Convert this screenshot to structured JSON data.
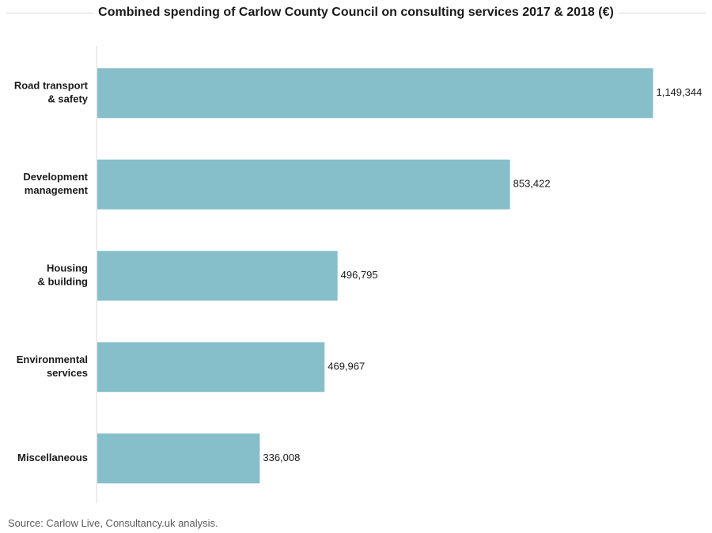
{
  "chart_data": {
    "type": "bar",
    "orientation": "horizontal",
    "title": "Combined spending of Carlow County Council on consulting services 2017 & 2018 (€)",
    "categories": [
      [
        "Road transport",
        "& safety"
      ],
      [
        "Development",
        "management"
      ],
      [
        "Housing",
        "& building"
      ],
      [
        "Environmental",
        "services"
      ],
      [
        "Miscellaneous"
      ]
    ],
    "values": [
      1149344,
      853422,
      496795,
      469967,
      336008
    ],
    "value_labels": [
      "1,149,344",
      "853,422",
      "496,795",
      "469,967",
      "336,008"
    ],
    "xlim": [
      0,
      1160000
    ],
    "grid": false,
    "bar_color": "#86bec9"
  },
  "source": "Source:  Carlow Live, Consultancy.uk analysis."
}
